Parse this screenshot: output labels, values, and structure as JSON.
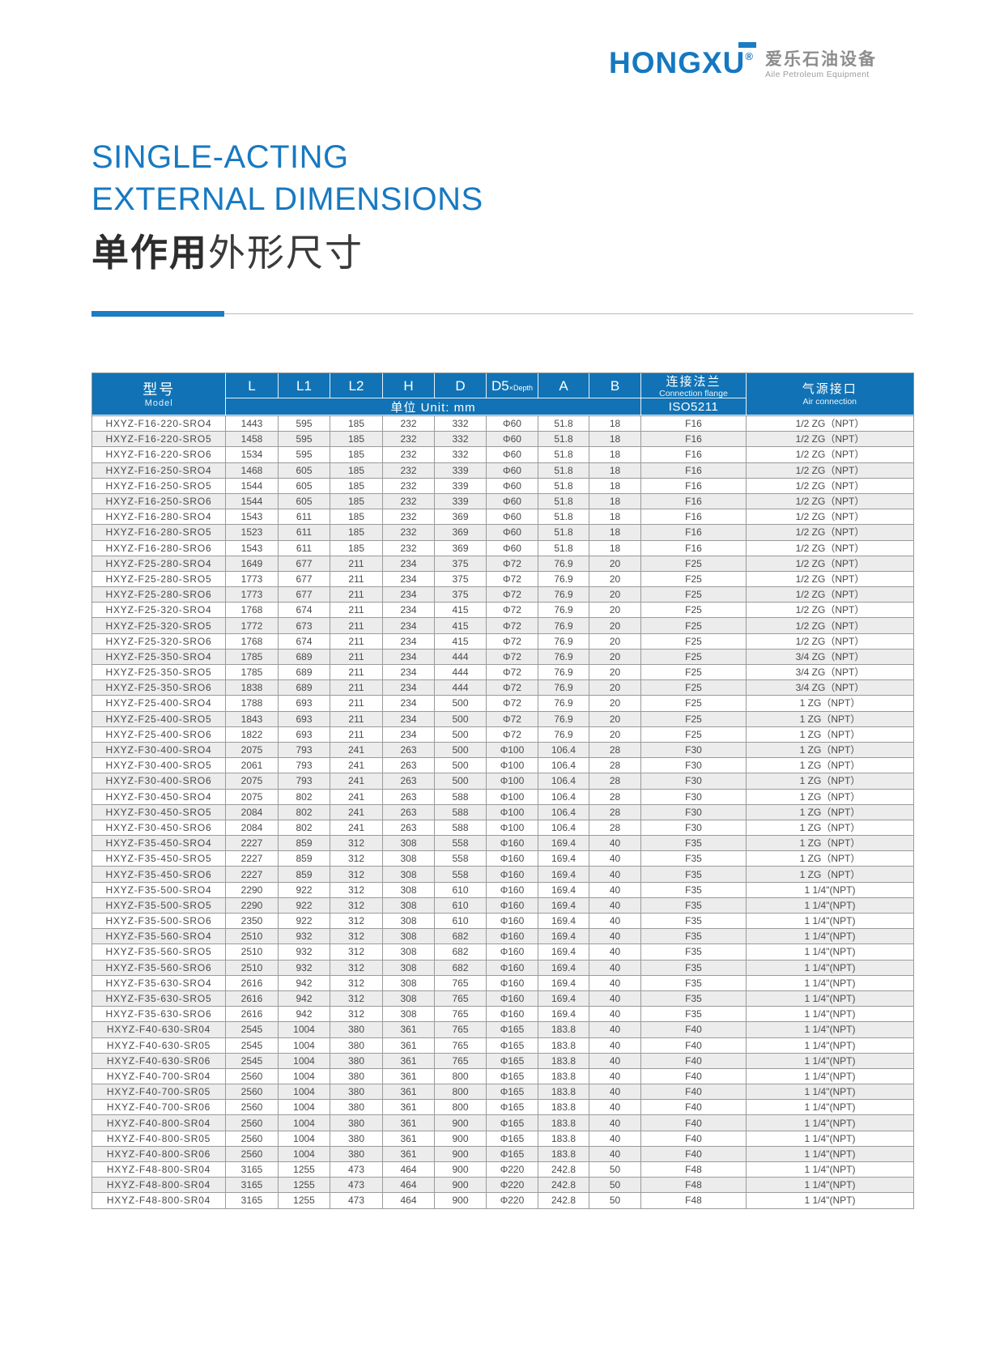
{
  "logo": {
    "brand": "HONGXU",
    "reg_mark": "®",
    "brand_cn": "爱乐石油设备",
    "brand_en": "Aile Petroleum Equipment"
  },
  "title": {
    "line1": "SINGLE-ACTING",
    "line2": "EXTERNAL DIMENSIONS",
    "line3_bold": "单作用",
    "line3_rest": "外形尺寸"
  },
  "colors": {
    "header_blue": "#1173b5",
    "title_blue": "#1779c1",
    "logo_blue": "#1578c0",
    "row_alt_gray": "#ececec",
    "grid_gray": "#9a9a9a"
  },
  "table": {
    "header": {
      "model_cn": "型号",
      "model_en": "Model",
      "col_l": "L",
      "col_l1": "L1",
      "col_l2": "L2",
      "col_h": "H",
      "col_d": "D",
      "col_d5": "D5",
      "col_d5_sub": "×Depth",
      "col_a": "A",
      "col_b": "B",
      "unit": "单位 Unit: mm",
      "flange_cn": "连接法兰",
      "flange_en": "Connection flange",
      "flange_std": "ISO5211",
      "air_cn": "气源接口",
      "air_en": "Air connection"
    },
    "rows": [
      [
        "HXYZ-F16-220-SRO4",
        "1443",
        "595",
        "185",
        "232",
        "332",
        "Φ60",
        "51.8",
        "18",
        "F16",
        "1/2 ZG（NPT）"
      ],
      [
        "HXYZ-F16-220-SRO5",
        "1458",
        "595",
        "185",
        "232",
        "332",
        "Φ60",
        "51.8",
        "18",
        "F16",
        "1/2 ZG（NPT）"
      ],
      [
        "HXYZ-F16-220-SRO6",
        "1534",
        "595",
        "185",
        "232",
        "332",
        "Φ60",
        "51.8",
        "18",
        "F16",
        "1/2 ZG（NPT）"
      ],
      [
        "HXYZ-F16-250-SRO4",
        "1468",
        "605",
        "185",
        "232",
        "339",
        "Φ60",
        "51.8",
        "18",
        "F16",
        "1/2 ZG（NPT）"
      ],
      [
        "HXYZ-F16-250-SRO5",
        "1544",
        "605",
        "185",
        "232",
        "339",
        "Φ60",
        "51.8",
        "18",
        "F16",
        "1/2 ZG（NPT）"
      ],
      [
        "HXYZ-F16-250-SRO6",
        "1544",
        "605",
        "185",
        "232",
        "339",
        "Φ60",
        "51.8",
        "18",
        "F16",
        "1/2 ZG（NPT）"
      ],
      [
        "HXYZ-F16-280-SRO4",
        "1543",
        "611",
        "185",
        "232",
        "369",
        "Φ60",
        "51.8",
        "18",
        "F16",
        "1/2 ZG（NPT）"
      ],
      [
        "HXYZ-F16-280-SRO5",
        "1523",
        "611",
        "185",
        "232",
        "369",
        "Φ60",
        "51.8",
        "18",
        "F16",
        "1/2 ZG（NPT）"
      ],
      [
        "HXYZ-F16-280-SRO6",
        "1543",
        "611",
        "185",
        "232",
        "369",
        "Φ60",
        "51.8",
        "18",
        "F16",
        "1/2 ZG（NPT）"
      ],
      [
        "HXYZ-F25-280-SRO4",
        "1649",
        "677",
        "211",
        "234",
        "375",
        "Φ72",
        "76.9",
        "20",
        "F25",
        "1/2 ZG（NPT）"
      ],
      [
        "HXYZ-F25-280-SRO5",
        "1773",
        "677",
        "211",
        "234",
        "375",
        "Φ72",
        "76.9",
        "20",
        "F25",
        "1/2 ZG（NPT）"
      ],
      [
        "HXYZ-F25-280-SRO6",
        "1773",
        "677",
        "211",
        "234",
        "375",
        "Φ72",
        "76.9",
        "20",
        "F25",
        "1/2 ZG（NPT）"
      ],
      [
        "HXYZ-F25-320-SRO4",
        "1768",
        "674",
        "211",
        "234",
        "415",
        "Φ72",
        "76.9",
        "20",
        "F25",
        "1/2 ZG（NPT）"
      ],
      [
        "HXYZ-F25-320-SRO5",
        "1772",
        "673",
        "211",
        "234",
        "415",
        "Φ72",
        "76.9",
        "20",
        "F25",
        "1/2 ZG（NPT）"
      ],
      [
        "HXYZ-F25-320-SRO6",
        "1768",
        "674",
        "211",
        "234",
        "415",
        "Φ72",
        "76.9",
        "20",
        "F25",
        "1/2 ZG（NPT）"
      ],
      [
        "HXYZ-F25-350-SRO4",
        "1785",
        "689",
        "211",
        "234",
        "444",
        "Φ72",
        "76.9",
        "20",
        "F25",
        "3/4 ZG（NPT）"
      ],
      [
        "HXYZ-F25-350-SRO5",
        "1785",
        "689",
        "211",
        "234",
        "444",
        "Φ72",
        "76.9",
        "20",
        "F25",
        "3/4 ZG（NPT）"
      ],
      [
        "HXYZ-F25-350-SRO6",
        "1838",
        "689",
        "211",
        "234",
        "444",
        "Φ72",
        "76.9",
        "20",
        "F25",
        "3/4 ZG（NPT）"
      ],
      [
        "HXYZ-F25-400-SRO4",
        "1788",
        "693",
        "211",
        "234",
        "500",
        "Φ72",
        "76.9",
        "20",
        "F25",
        "1 ZG（NPT）"
      ],
      [
        "HXYZ-F25-400-SRO5",
        "1843",
        "693",
        "211",
        "234",
        "500",
        "Φ72",
        "76.9",
        "20",
        "F25",
        "1 ZG（NPT）"
      ],
      [
        "HXYZ-F25-400-SRO6",
        "1822",
        "693",
        "211",
        "234",
        "500",
        "Φ72",
        "76.9",
        "20",
        "F25",
        "1 ZG（NPT）"
      ],
      [
        "HXYZ-F30-400-SRO4",
        "2075",
        "793",
        "241",
        "263",
        "500",
        "Φ100",
        "106.4",
        "28",
        "F30",
        "1 ZG（NPT）"
      ],
      [
        "HXYZ-F30-400-SRO5",
        "2061",
        "793",
        "241",
        "263",
        "500",
        "Φ100",
        "106.4",
        "28",
        "F30",
        "1 ZG（NPT）"
      ],
      [
        "HXYZ-F30-400-SRO6",
        "2075",
        "793",
        "241",
        "263",
        "500",
        "Φ100",
        "106.4",
        "28",
        "F30",
        "1 ZG（NPT）"
      ],
      [
        "HXYZ-F30-450-SRO4",
        "2075",
        "802",
        "241",
        "263",
        "588",
        "Φ100",
        "106.4",
        "28",
        "F30",
        "1 ZG（NPT）"
      ],
      [
        "HXYZ-F30-450-SRO5",
        "2084",
        "802",
        "241",
        "263",
        "588",
        "Φ100",
        "106.4",
        "28",
        "F30",
        "1 ZG（NPT）"
      ],
      [
        "HXYZ-F30-450-SRO6",
        "2084",
        "802",
        "241",
        "263",
        "588",
        "Φ100",
        "106.4",
        "28",
        "F30",
        "1 ZG（NPT）"
      ],
      [
        "HXYZ-F35-450-SRO4",
        "2227",
        "859",
        "312",
        "308",
        "558",
        "Φ160",
        "169.4",
        "40",
        "F35",
        "1 ZG（NPT）"
      ],
      [
        "HXYZ-F35-450-SRO5",
        "2227",
        "859",
        "312",
        "308",
        "558",
        "Φ160",
        "169.4",
        "40",
        "F35",
        "1 ZG（NPT）"
      ],
      [
        "HXYZ-F35-450-SRO6",
        "2227",
        "859",
        "312",
        "308",
        "558",
        "Φ160",
        "169.4",
        "40",
        "F35",
        "1 ZG（NPT）"
      ],
      [
        "HXYZ-F35-500-SRO4",
        "2290",
        "922",
        "312",
        "308",
        "610",
        "Φ160",
        "169.4",
        "40",
        "F35",
        "1 1/4\"(NPT)"
      ],
      [
        "HXYZ-F35-500-SRO5",
        "2290",
        "922",
        "312",
        "308",
        "610",
        "Φ160",
        "169.4",
        "40",
        "F35",
        "1 1/4\"(NPT)"
      ],
      [
        "HXYZ-F35-500-SRO6",
        "2350",
        "922",
        "312",
        "308",
        "610",
        "Φ160",
        "169.4",
        "40",
        "F35",
        "1 1/4\"(NPT)"
      ],
      [
        "HXYZ-F35-560-SRO4",
        "2510",
        "932",
        "312",
        "308",
        "682",
        "Φ160",
        "169.4",
        "40",
        "F35",
        "1 1/4\"(NPT)"
      ],
      [
        "HXYZ-F35-560-SRO5",
        "2510",
        "932",
        "312",
        "308",
        "682",
        "Φ160",
        "169.4",
        "40",
        "F35",
        "1 1/4\"(NPT)"
      ],
      [
        "HXYZ-F35-560-SRO6",
        "2510",
        "932",
        "312",
        "308",
        "682",
        "Φ160",
        "169.4",
        "40",
        "F35",
        "1 1/4\"(NPT)"
      ],
      [
        "HXYZ-F35-630-SRO4",
        "2616",
        "942",
        "312",
        "308",
        "765",
        "Φ160",
        "169.4",
        "40",
        "F35",
        "1 1/4\"(NPT)"
      ],
      [
        "HXYZ-F35-630-SRO5",
        "2616",
        "942",
        "312",
        "308",
        "765",
        "Φ160",
        "169.4",
        "40",
        "F35",
        "1 1/4\"(NPT)"
      ],
      [
        "HXYZ-F35-630-SRO6",
        "2616",
        "942",
        "312",
        "308",
        "765",
        "Φ160",
        "169.4",
        "40",
        "F35",
        "1 1/4\"(NPT)"
      ],
      [
        "HXYZ-F40-630-SR04",
        "2545",
        "1004",
        "380",
        "361",
        "765",
        "Φ165",
        "183.8",
        "40",
        "F40",
        "1 1/4\"(NPT)"
      ],
      [
        "HXYZ-F40-630-SR05",
        "2545",
        "1004",
        "380",
        "361",
        "765",
        "Φ165",
        "183.8",
        "40",
        "F40",
        "1 1/4\"(NPT)"
      ],
      [
        "HXYZ-F40-630-SR06",
        "2545",
        "1004",
        "380",
        "361",
        "765",
        "Φ165",
        "183.8",
        "40",
        "F40",
        "1 1/4\"(NPT)"
      ],
      [
        "HXYZ-F40-700-SR04",
        "2560",
        "1004",
        "380",
        "361",
        "800",
        "Φ165",
        "183.8",
        "40",
        "F40",
        "1 1/4\"(NPT)"
      ],
      [
        "HXYZ-F40-700-SR05",
        "2560",
        "1004",
        "380",
        "361",
        "800",
        "Φ165",
        "183.8",
        "40",
        "F40",
        "1 1/4\"(NPT)"
      ],
      [
        "HXYZ-F40-700-SR06",
        "2560",
        "1004",
        "380",
        "361",
        "800",
        "Φ165",
        "183.8",
        "40",
        "F40",
        "1 1/4\"(NPT)"
      ],
      [
        "HXYZ-F40-800-SR04",
        "2560",
        "1004",
        "380",
        "361",
        "900",
        "Φ165",
        "183.8",
        "40",
        "F40",
        "1 1/4\"(NPT)"
      ],
      [
        "HXYZ-F40-800-SR05",
        "2560",
        "1004",
        "380",
        "361",
        "900",
        "Φ165",
        "183.8",
        "40",
        "F40",
        "1 1/4\"(NPT)"
      ],
      [
        "HXYZ-F40-800-SR06",
        "2560",
        "1004",
        "380",
        "361",
        "900",
        "Φ165",
        "183.8",
        "40",
        "F40",
        "1 1/4\"(NPT)"
      ],
      [
        "HXYZ-F48-800-SR04",
        "3165",
        "1255",
        "473",
        "464",
        "900",
        "Φ220",
        "242.8",
        "50",
        "F48",
        "1 1/4\"(NPT)"
      ],
      [
        "HXYZ-F48-800-SR04",
        "3165",
        "1255",
        "473",
        "464",
        "900",
        "Φ220",
        "242.8",
        "50",
        "F48",
        "1 1/4\"(NPT)"
      ],
      [
        "HXYZ-F48-800-SR04",
        "3165",
        "1255",
        "473",
        "464",
        "900",
        "Φ220",
        "242.8",
        "50",
        "F48",
        "1 1/4\"(NPT)"
      ]
    ]
  }
}
